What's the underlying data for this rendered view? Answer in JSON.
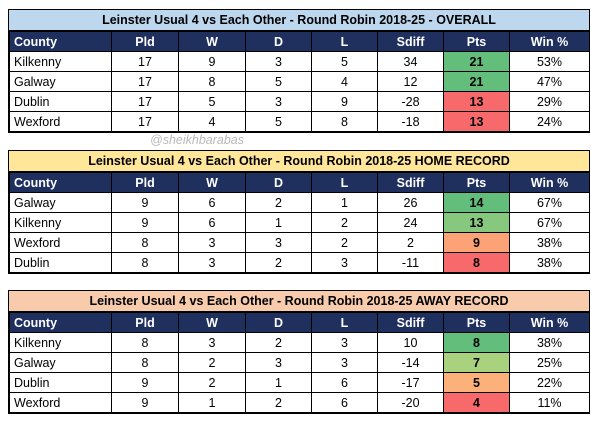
{
  "watermark": "@sheikhbarabas",
  "columns": [
    "County",
    "Pld",
    "W",
    "D",
    "L",
    "Sdiff",
    "Pts",
    "Win %"
  ],
  "tables": [
    {
      "title": "Leinster Usual 4 vs Each Other - Round Robin 2018-25 - OVERALL",
      "title_bg": "#bdd7ee",
      "rows": [
        {
          "county": "Kilkenny",
          "pld": "17",
          "w": "9",
          "d": "3",
          "l": "5",
          "sdiff": "34",
          "pts": "21",
          "win": "53%",
          "pts_color": "#63be7b"
        },
        {
          "county": "Galway",
          "pld": "17",
          "w": "8",
          "d": "5",
          "l": "4",
          "sdiff": "12",
          "pts": "21",
          "win": "47%",
          "pts_color": "#63be7b"
        },
        {
          "county": "Dublin",
          "pld": "17",
          "w": "5",
          "d": "3",
          "l": "9",
          "sdiff": "-28",
          "pts": "13",
          "win": "29%",
          "pts_color": "#f8696b"
        },
        {
          "county": "Wexford",
          "pld": "17",
          "w": "4",
          "d": "5",
          "l": "8",
          "sdiff": "-18",
          "pts": "13",
          "win": "24%",
          "pts_color": "#f8696b"
        }
      ]
    },
    {
      "title": "Leinster Usual 4 vs Each Other - Round Robin 2018-25 HOME RECORD",
      "title_bg": "#ffe699",
      "rows": [
        {
          "county": "Galway",
          "pld": "9",
          "w": "6",
          "d": "2",
          "l": "1",
          "sdiff": "26",
          "pts": "14",
          "win": "67%",
          "pts_color": "#63be7b"
        },
        {
          "county": "Kilkenny",
          "pld": "9",
          "w": "6",
          "d": "1",
          "l": "2",
          "sdiff": "24",
          "pts": "13",
          "win": "67%",
          "pts_color": "#86c97e"
        },
        {
          "county": "Wexford",
          "pld": "8",
          "w": "3",
          "d": "3",
          "l": "2",
          "sdiff": "2",
          "pts": "9",
          "win": "38%",
          "pts_color": "#fba276"
        },
        {
          "county": "Dublin",
          "pld": "8",
          "w": "3",
          "d": "2",
          "l": "3",
          "sdiff": "-11",
          "pts": "8",
          "win": "38%",
          "pts_color": "#f8696b"
        }
      ]
    },
    {
      "title": "Leinster Usual 4 vs Each Other - Round Robin 2018-25 AWAY RECORD",
      "title_bg": "#f8cbad",
      "rows": [
        {
          "county": "Kilkenny",
          "pld": "8",
          "w": "3",
          "d": "2",
          "l": "3",
          "sdiff": "10",
          "pts": "8",
          "win": "38%",
          "pts_color": "#63be7b"
        },
        {
          "county": "Galway",
          "pld": "8",
          "w": "2",
          "d": "3",
          "l": "3",
          "sdiff": "-14",
          "pts": "7",
          "win": "25%",
          "pts_color": "#a9d27f"
        },
        {
          "county": "Dublin",
          "pld": "9",
          "w": "2",
          "d": "1",
          "l": "6",
          "sdiff": "-17",
          "pts": "5",
          "win": "22%",
          "pts_color": "#fcb07a"
        },
        {
          "county": "Wexford",
          "pld": "9",
          "w": "1",
          "d": "2",
          "l": "6",
          "sdiff": "-20",
          "pts": "4",
          "win": "11%",
          "pts_color": "#f8696b"
        }
      ]
    }
  ]
}
